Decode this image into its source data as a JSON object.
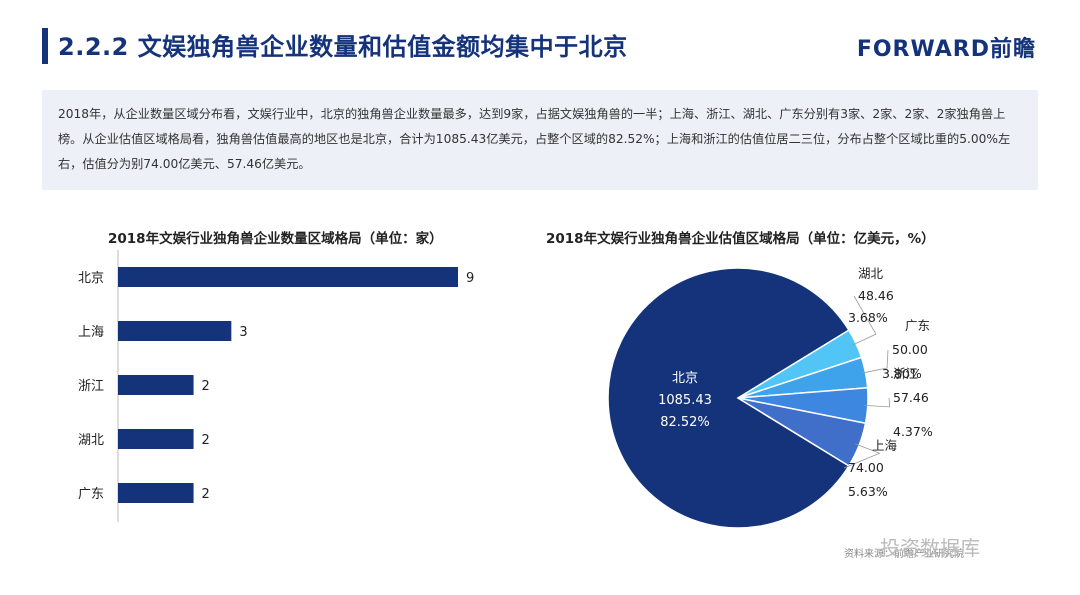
{
  "header": {
    "title": "2.2.2 文娱独角兽企业数量和估值金额均集中于北京",
    "logo": "FORWARD前瞻"
  },
  "summary": {
    "text": "2018年，从企业数量区域分布看，文娱行业中，北京的独角兽企业数量最多，达到9家，占据文娱独角兽的一半；上海、浙江、湖北、广东分别有3家、2家、2家、2家独角兽上榜。从企业估值区域格局看，独角兽估值最高的地区也是北京，合计为1085.43亿美元，占整个区域的82.52%；上海和浙江的估值位居二三位，分布占整个区域比重的5.00%左右，估值分为别74.00亿美元、57.46亿美元。"
  },
  "footer": {
    "source": "资料来源：前瞻产业研究院",
    "watermark": "投资数据库"
  },
  "colors": {
    "navy": "#14337a",
    "slice_shanghai": "#3f6fc9",
    "slice_zhejiang": "#3d87e0",
    "slice_guangdong": "#3fa3ec",
    "slice_hubei": "#52c5f7"
  },
  "chart_data": [
    {
      "type": "bar",
      "orientation": "horizontal",
      "title": "2018年文娱行业独角兽企业数量区域格局（单位：家）",
      "categories": [
        "北京",
        "上海",
        "浙江",
        "湖北",
        "广东"
      ],
      "values": [
        9,
        3,
        2,
        2,
        2
      ],
      "xlim": [
        0,
        9
      ],
      "grid": false,
      "data_labels": true
    },
    {
      "type": "pie",
      "title": "2018年文娱行业独角兽企业估值区域格局（单位：亿美元，%）",
      "slices": [
        {
          "label": "北京",
          "value": 1085.43,
          "percent": "82.52%"
        },
        {
          "label": "上海",
          "value": 74.0,
          "percent": "5.63%"
        },
        {
          "label": "浙江",
          "value": 57.46,
          "percent": "4.37%"
        },
        {
          "label": "广东",
          "value": 50.0,
          "percent": "3.80%"
        },
        {
          "label": "湖北",
          "value": 48.46,
          "percent": "3.68%"
        }
      ]
    }
  ]
}
